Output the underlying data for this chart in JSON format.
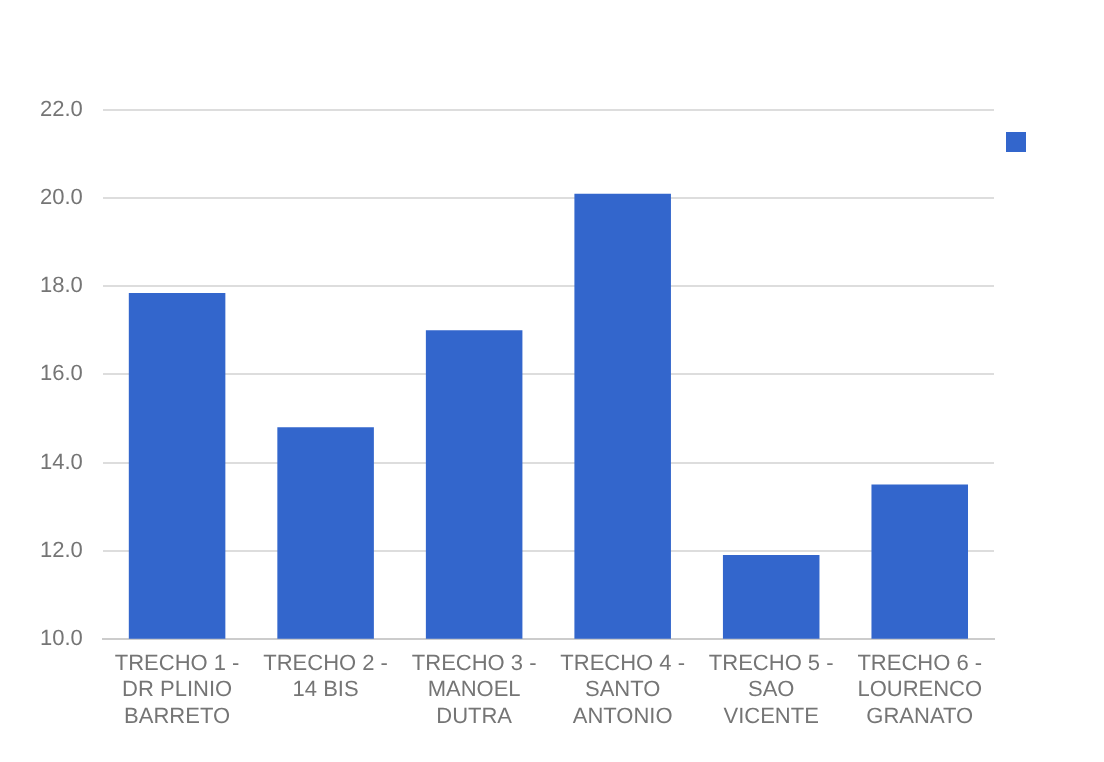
{
  "chart_data": {
    "type": "bar",
    "categories": [
      "TRECHO 1 - DR PLINIO BARRETO",
      "TRECHO 2 - 14 BIS",
      "TRECHO 3 - MANOEL DUTRA",
      "TRECHO 4 - SANTO ANTONIO",
      "TRECHO 5 - SAO VICENTE",
      "TRECHO 6 - LOURENCO GRANATO"
    ],
    "series": [
      {
        "color": "#3366cc",
        "values": [
          17.85,
          14.8,
          17.0,
          20.1,
          11.9,
          13.5
        ]
      }
    ],
    "ylim": [
      10,
      22
    ],
    "yticks": [
      {
        "value": 10,
        "label": "10.0"
      },
      {
        "value": 12,
        "label": "12.0"
      },
      {
        "value": 14,
        "label": "14.0"
      },
      {
        "value": 16,
        "label": "16.0"
      },
      {
        "value": 18,
        "label": "18.0"
      },
      {
        "value": 20,
        "label": "20.0"
      },
      {
        "value": 22,
        "label": "22.0"
      }
    ],
    "grid": "y"
  }
}
